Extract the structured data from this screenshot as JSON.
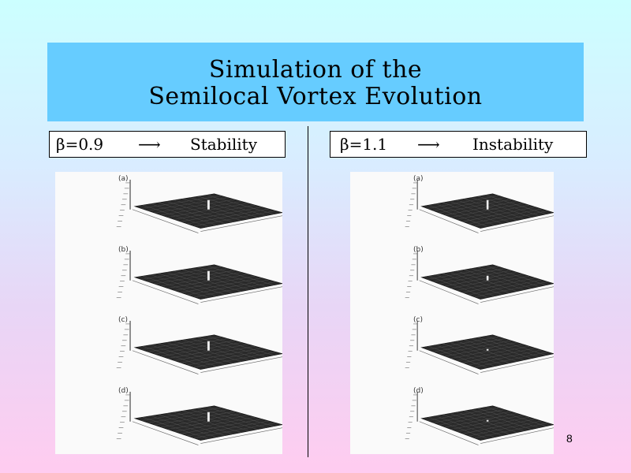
{
  "slide": {
    "title_line1": "Simulation of the",
    "title_line2": "Semilocal Vortex Evolution",
    "page_number": "8"
  },
  "left": {
    "beta": "β=0.9",
    "arrow": "⟶",
    "outcome": "Stability",
    "panels": [
      "(a)",
      "(b)",
      "(c)",
      "(d)"
    ]
  },
  "right": {
    "beta": "β=1.1",
    "arrow": "⟶",
    "outcome": "Instability",
    "panels": [
      "(a)",
      "(b)",
      "(c)",
      "(d)"
    ]
  },
  "icons": {
    "arrow": "right-arrow-icon"
  }
}
